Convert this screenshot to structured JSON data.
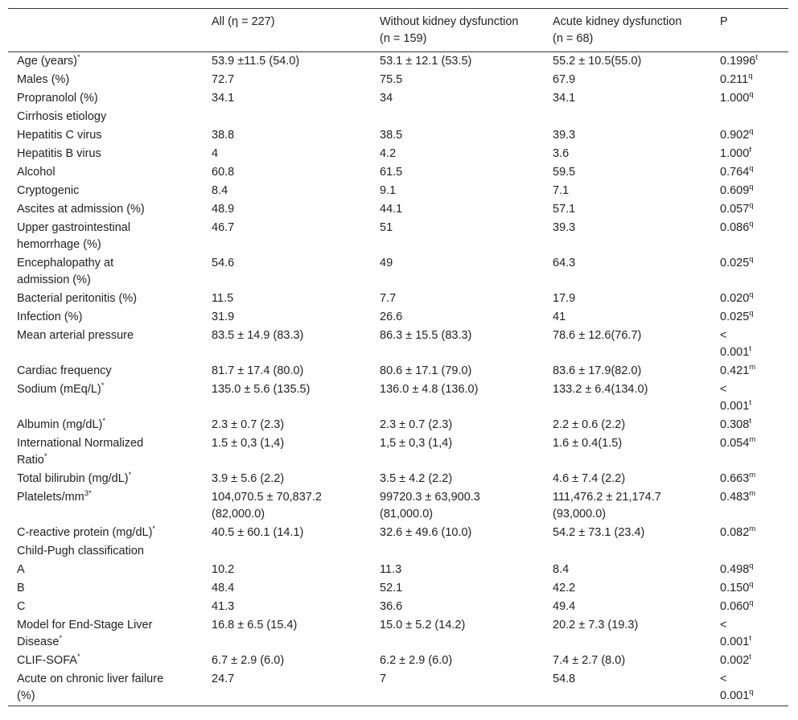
{
  "table": {
    "header": {
      "all": [
        "All (η = 227)"
      ],
      "without": [
        "Without kidney dysfunction",
        "(n = 159)"
      ],
      "acute": [
        "Acute kidney dysfunction",
        "(n = 68)"
      ],
      "p": [
        "P"
      ]
    },
    "rows": [
      {
        "label": "Age (years)",
        "label_sup": "*",
        "all": "53.9 ±11.5 (54.0)",
        "without": "53.1 ± 12.1 (53.5)",
        "acute": "55.2 ± 10.5(55.0)",
        "p": "0.1996",
        "p_sup": "t"
      },
      {
        "label": "Males (%)",
        "all": "72.7",
        "without": "75.5",
        "acute": "67.9",
        "p": "0.211",
        "p_sup": "q"
      },
      {
        "label": "Propranolol (%)",
        "all": "34.1",
        "without": "34",
        "acute": "34.1",
        "p": "1.000",
        "p_sup": "q"
      },
      {
        "label": "Cirrhosis etiology"
      },
      {
        "label": "Hepatitis C virus",
        "all": "38.8",
        "without": "38.5",
        "acute": "39.3",
        "p": "0.902",
        "p_sup": "q"
      },
      {
        "label": "Hepatitis B virus",
        "all": "4",
        "without": "4.2",
        "acute": "3.6",
        "p": "1.000",
        "p_sup": "f"
      },
      {
        "label": "Alcohol",
        "all": "60.8",
        "without": "61.5",
        "acute": "59.5",
        "p": "0.764",
        "p_sup": "q"
      },
      {
        "label": "Cryptogenic",
        "all": "8.4",
        "without": "9.1",
        "acute": "7.1",
        "p": "0.609",
        "p_sup": "q"
      },
      {
        "label": "Ascites at admission (%)",
        "all": "48.9",
        "without": "44.1",
        "acute": "57.1",
        "p": "0.057",
        "p_sup": "q"
      },
      {
        "label": [
          "Upper gastrointestinal",
          "hemorrhage (%)"
        ],
        "all": "46.7",
        "without": "51",
        "acute": "39.3",
        "p": "0.086",
        "p_sup": "q"
      },
      {
        "label": [
          "Encephalopathy at",
          "admission (%)"
        ],
        "all": "54.6",
        "without": "49",
        "acute": "64.3",
        "p": "0.025",
        "p_sup": "q"
      },
      {
        "label": "Bacterial peritonitis (%)",
        "all": "11.5",
        "without": "7.7",
        "acute": "17.9",
        "p": "0.020",
        "p_sup": "q"
      },
      {
        "label": "Infection (%)",
        "all": "31.9",
        "without": "26.6",
        "acute": "41",
        "p": "0.025",
        "p_sup": "q"
      },
      {
        "label": "Mean arterial pressure",
        "all": "83.5 ± 14.9 (83.3)",
        "without": "86.3 ± 15.5 (83.3)",
        "acute": "78.6 ± 12.6(76.7)",
        "p": [
          "<",
          "0.001"
        ],
        "p_sup": "t"
      },
      {
        "label": "Cardiac frequency",
        "all": "81.7 ± 17.4 (80.0)",
        "without": "80.6 ± 17.1 (79.0)",
        "acute": "83.6 ± 17.9(82.0)",
        "p": "0.421",
        "p_sup": "m"
      },
      {
        "label": "Sodium (mEq/L)",
        "label_sup": "*",
        "all": "135.0 ± 5.6 (135.5)",
        "without": "136.0 ± 4.8 (136.0)",
        "acute": "133.2 ± 6.4(134.0)",
        "p": [
          "<",
          "0.001"
        ],
        "p_sup": "t"
      },
      {
        "label": "Albumin (mg/dL)",
        "label_sup": "*",
        "all": "2.3 ± 0.7 (2.3)",
        "without": "2.3 ± 0.7 (2.3)",
        "acute": "2.2 ± 0.6 (2.2)",
        "p": "0.308",
        "p_sup": "t"
      },
      {
        "label": [
          "International Normalized",
          "Ratio"
        ],
        "label_sup": "*",
        "all": "1.5 ± 0,3 (1,4)",
        "without": "1,5 ± 0,3 (1,4)",
        "acute": "1.6 ± 0.4(1.5)",
        "p": "0.054",
        "p_sup": "m"
      },
      {
        "label": "Total bilirubin (mg/dL)",
        "label_sup": "*",
        "all": "3.9 ± 5.6 (2.2)",
        "without": "3.5 ± 4.2 (2.2)",
        "acute": "4.6 ± 7.4 (2.2)",
        "p": "0.663",
        "p_sup": "m"
      },
      {
        "label": "Platelets/mm",
        "label_sup": "3*",
        "all": [
          "104,070.5 ± 70,837.2",
          "(82,000.0)"
        ],
        "without": [
          "99720.3 ± 63,900.3",
          "(81,000.0)"
        ],
        "acute": [
          "111,476.2 ± 21,174.7",
          "(93,000.0)"
        ],
        "p": "0.483",
        "p_sup": "m"
      },
      {
        "label": "C-reactive protein (mg/dL)",
        "label_sup": "*",
        "all": "40.5 ± 60.1 (14.1)",
        "without": "32.6 ± 49.6 (10.0)",
        "acute": "54.2 ± 73.1 (23.4)",
        "p": "0.082",
        "p_sup": "m"
      },
      {
        "label": "Child-Pugh classification"
      },
      {
        "label": "A",
        "all": "10.2",
        "without": "11.3",
        "acute": "8.4",
        "p": "0.498",
        "p_sup": "q"
      },
      {
        "label": "B",
        "all": "48.4",
        "without": "52.1",
        "acute": "42.2",
        "p": "0.150",
        "p_sup": "q"
      },
      {
        "label": "C",
        "all": "41.3",
        "without": "36.6",
        "acute": "49.4",
        "p": "0.060",
        "p_sup": "q"
      },
      {
        "label": [
          "Model for End-Stage Liver",
          "Disease"
        ],
        "label_sup": "*",
        "all": "16.8 ± 6.5 (15.4)",
        "without": "15.0 ± 5.2 (14.2)",
        "acute": "20.2 ± 7.3 (19.3)",
        "p": [
          "<",
          "0.001"
        ],
        "p_sup": "t"
      },
      {
        "label": "CLIF-SOFA",
        "label_sup": "*",
        "all": "6.7 ± 2.9 (6.0)",
        "without": "6.2 ± 2.9 (6.0)",
        "acute": "7.4 ± 2.7 (8.0)",
        "p": "0.002",
        "p_sup": "t"
      },
      {
        "label": [
          "Acute on chronic liver failure",
          "(%)"
        ],
        "all": "24.7",
        "without": "7",
        "acute": "54.8",
        "p": [
          "<",
          "0.001"
        ],
        "p_sup": "q"
      }
    ]
  }
}
